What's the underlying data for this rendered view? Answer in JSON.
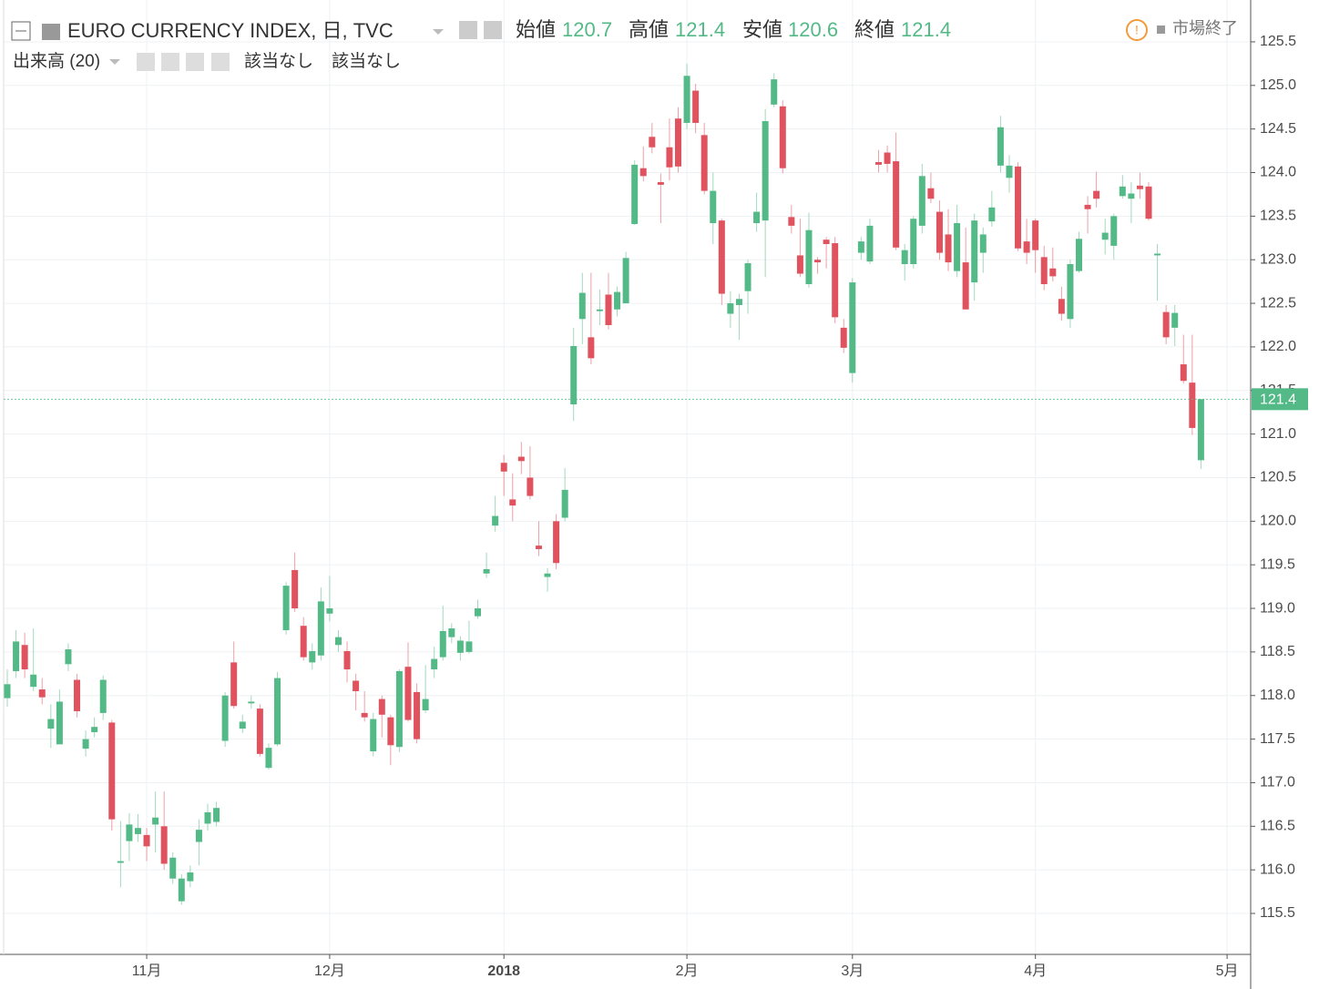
{
  "chart_data": {
    "type": "candlestick",
    "title": "EURO CURRENCY INDEX, 日, TVC",
    "ohlc_labels": [
      "始値",
      "高値",
      "安値",
      "終値"
    ],
    "volume_label": "出来高 (20)",
    "volume_values": [
      "該当なし",
      "該当なし"
    ],
    "status": "市場終了",
    "up_color": "#53b987",
    "down_color": "#e0525e",
    "grid": true,
    "categories": [
      null,
      null,
      null,
      null,
      null,
      null,
      null,
      null,
      null,
      null,
      null,
      null,
      null,
      null,
      null,
      null,
      "11月",
      null,
      null,
      null,
      null,
      null,
      null,
      null,
      null,
      null,
      null,
      null,
      null,
      null,
      null,
      null,
      null,
      null,
      null,
      null,
      null,
      "12月",
      null,
      null,
      null,
      null,
      null,
      null,
      null,
      null,
      null,
      null,
      null,
      null,
      null,
      null,
      null,
      null,
      null,
      null,
      null,
      "2018",
      null,
      null,
      null,
      null,
      null,
      null,
      null,
      null,
      null,
      null,
      null,
      null,
      null,
      null,
      null,
      null,
      null,
      null,
      null,
      null,
      "2月",
      null,
      null,
      null,
      null,
      null,
      null,
      null,
      null,
      null,
      null,
      null,
      null,
      null,
      null,
      null,
      null,
      null,
      null,
      "3月",
      null,
      null,
      null,
      null,
      null,
      null,
      null,
      null,
      null,
      null,
      null,
      null,
      null,
      null,
      null,
      null,
      null,
      null,
      null,
      null,
      "4月",
      null,
      null,
      null,
      null,
      null,
      null,
      null,
      null,
      null,
      null,
      null,
      null,
      null,
      null,
      null,
      null,
      null,
      null,
      null,
      null,
      null,
      "5月"
    ],
    "open": [
      117.97,
      118.28,
      118.58,
      118.1,
      118.07,
      117.62,
      117.44,
      118.36,
      118.18,
      117.39,
      117.58,
      117.8,
      117.69,
      116.08,
      116.33,
      116.41,
      116.4,
      116.52,
      116.5,
      115.9,
      115.64,
      115.87,
      116.32,
      116.53,
      116.55,
      117.48,
      118.38,
      117.62,
      117.91,
      117.85,
      117.17,
      117.44,
      118.75,
      119.44,
      118.8,
      118.38,
      118.46,
      118.94,
      118.58,
      118.51,
      118.17,
      117.8,
      117.36,
      117.96,
      117.75,
      117.41,
      118.33,
      118.04,
      117.83,
      118.3,
      118.44,
      118.67,
      118.49,
      118.5,
      118.91,
      119.4,
      119.95,
      120.67,
      120.25,
      120.74,
      120.5,
      119.72,
      119.36,
      120.0,
      120.04,
      121.34,
      122.32,
      122.11,
      122.41,
      122.6,
      122.43,
      122.5,
      123.41,
      124.05,
      124.41,
      123.89,
      124.29,
      124.62,
      124.57,
      124.94,
      124.43,
      123.42,
      123.45,
      122.38,
      122.48,
      122.64,
      123.42,
      123.45,
      124.78,
      124.76,
      123.49,
      123.05,
      122.72,
      123.0,
      123.23,
      123.19,
      122.22,
      121.7,
      123.08,
      122.98,
      124.12,
      124.23,
      124.13,
      122.95,
      122.95,
      123.39,
      123.82,
      123.55,
      123.29,
      122.87,
      122.97,
      122.74,
      123.08,
      123.44,
      124.08,
      123.94,
      124.07,
      123.21,
      123.45,
      123.03,
      122.9,
      122.55,
      122.32,
      122.87,
      123.63,
      123.79,
      123.23,
      123.16,
      123.73,
      123.7,
      123.85,
      123.84,
      123.05,
      122.4,
      122.22,
      121.8,
      121.59,
      120.7,
      null,
      null,
      null
    ],
    "high": [
      118.3,
      118.75,
      118.72,
      118.77,
      118.2,
      117.9,
      118.07,
      118.6,
      118.25,
      117.6,
      117.75,
      118.23,
      117.72,
      116.56,
      116.65,
      116.64,
      116.48,
      116.9,
      116.9,
      116.2,
      115.95,
      116.05,
      116.58,
      116.76,
      116.78,
      118.04,
      118.62,
      117.78,
      118.0,
      117.9,
      117.45,
      118.27,
      119.3,
      119.64,
      118.9,
      118.6,
      119.24,
      119.37,
      118.75,
      118.62,
      118.25,
      118.05,
      117.8,
      118.0,
      117.78,
      118.3,
      118.61,
      118.14,
      118.35,
      118.56,
      119.03,
      118.83,
      118.68,
      118.86,
      119.1,
      119.64,
      120.29,
      120.76,
      120.55,
      120.91,
      120.86,
      120.0,
      119.46,
      120.08,
      120.61,
      122.22,
      122.85,
      122.85,
      122.66,
      122.85,
      122.69,
      123.09,
      124.14,
      124.3,
      124.57,
      123.99,
      124.62,
      124.75,
      125.25,
      125.02,
      124.57,
      124.0,
      123.47,
      122.64,
      122.61,
      123.0,
      123.77,
      124.73,
      125.14,
      124.83,
      123.63,
      123.47,
      123.54,
      123.03,
      123.26,
      123.26,
      122.32,
      122.79,
      123.26,
      123.47,
      124.26,
      124.31,
      124.46,
      123.18,
      123.5,
      124.1,
      124.0,
      123.68,
      123.58,
      123.63,
      123.37,
      123.53,
      123.37,
      123.79,
      124.65,
      124.2,
      124.12,
      123.47,
      123.47,
      123.16,
      123.14,
      122.69,
      123.0,
      123.32,
      123.73,
      124.01,
      123.47,
      123.53,
      123.97,
      123.89,
      124.0,
      123.89,
      123.18,
      122.48,
      122.48,
      122.14,
      122.14,
      121.4,
      null,
      null,
      null
    ],
    "low": [
      117.87,
      118.2,
      118.2,
      118.05,
      117.9,
      117.4,
      117.44,
      118.28,
      117.75,
      117.3,
      117.52,
      117.72,
      116.45,
      115.8,
      116.1,
      116.32,
      116.1,
      116.2,
      116.0,
      115.84,
      115.6,
      115.8,
      116.05,
      116.45,
      116.5,
      117.41,
      117.85,
      117.57,
      117.85,
      117.3,
      117.15,
      117.42,
      118.7,
      118.96,
      118.4,
      118.3,
      118.4,
      118.85,
      118.5,
      118.15,
      117.83,
      117.7,
      117.3,
      117.52,
      117.2,
      117.35,
      117.7,
      117.45,
      117.8,
      118.2,
      118.4,
      118.6,
      118.4,
      118.48,
      118.88,
      119.35,
      119.88,
      120.29,
      120.0,
      120.54,
      120.25,
      119.6,
      119.19,
      119.45,
      120.0,
      121.15,
      122.03,
      121.8,
      122.25,
      122.2,
      122.35,
      122.5,
      123.4,
      123.9,
      124.22,
      123.42,
      123.91,
      124.0,
      124.5,
      124.45,
      123.75,
      123.18,
      122.48,
      122.22,
      122.08,
      122.38,
      123.32,
      122.8,
      124.75,
      123.99,
      123.3,
      122.8,
      122.68,
      122.84,
      122.9,
      122.27,
      121.93,
      121.59,
      123.0,
      122.95,
      124.0,
      124.0,
      123.11,
      122.76,
      122.9,
      123.3,
      123.65,
      123.0,
      122.87,
      122.8,
      122.43,
      122.53,
      122.85,
      123.38,
      124.0,
      123.77,
      123.1,
      122.95,
      122.85,
      122.65,
      122.75,
      122.3,
      122.22,
      122.85,
      123.3,
      123.6,
      123.06,
      123.0,
      123.7,
      123.42,
      123.7,
      123.45,
      122.53,
      122.03,
      122.01,
      121.58,
      120.99,
      120.6,
      null,
      null,
      null
    ],
    "close": [
      118.13,
      118.62,
      118.3,
      118.24,
      117.98,
      117.73,
      117.93,
      118.53,
      117.82,
      117.5,
      117.64,
      118.18,
      116.58,
      116.1,
      116.52,
      116.48,
      116.27,
      116.6,
      116.07,
      116.14,
      115.9,
      115.97,
      116.46,
      116.66,
      116.71,
      118.0,
      117.88,
      117.7,
      117.93,
      117.33,
      117.4,
      118.2,
      119.26,
      119.0,
      118.44,
      118.51,
      119.08,
      119.0,
      118.67,
      118.3,
      118.05,
      117.75,
      117.73,
      117.78,
      117.43,
      118.28,
      117.72,
      117.5,
      117.96,
      118.42,
      118.74,
      118.77,
      118.63,
      118.62,
      119.0,
      119.45,
      120.06,
      120.57,
      120.18,
      120.69,
      120.29,
      119.68,
      119.4,
      119.52,
      120.36,
      122.01,
      122.62,
      121.87,
      122.43,
      122.25,
      122.63,
      123.02,
      124.09,
      123.96,
      124.29,
      123.86,
      124.06,
      124.07,
      125.11,
      124.57,
      123.79,
      123.79,
      122.61,
      122.5,
      122.55,
      122.96,
      123.55,
      124.59,
      125.07,
      124.05,
      123.39,
      122.84,
      123.34,
      122.97,
      123.18,
      122.34,
      121.99,
      122.74,
      123.21,
      123.39,
      124.09,
      124.1,
      123.14,
      123.11,
      123.47,
      123.96,
      123.7,
      123.08,
      122.97,
      123.42,
      122.43,
      123.45,
      123.29,
      123.6,
      124.52,
      124.08,
      123.13,
      123.08,
      123.11,
      122.72,
      122.81,
      122.38,
      122.95,
      123.24,
      123.58,
      123.7,
      123.31,
      123.5,
      123.84,
      123.76,
      123.81,
      123.47,
      123.07,
      122.11,
      122.39,
      121.61,
      121.07,
      121.4,
      null,
      null,
      null
    ],
    "ylim": [
      115.03,
      125.98
    ],
    "yticks": [
      115.5,
      {
        "value": 116,
        "label": "116.0"
      },
      116.5,
      {
        "value": 117,
        "label": "117.0"
      },
      117.5,
      {
        "value": 118,
        "label": "118.0"
      },
      118.5,
      {
        "value": 119,
        "label": "119.0"
      },
      119.5,
      {
        "value": 120,
        "label": "120.0"
      },
      120.5,
      {
        "value": 121,
        "label": "121.0"
      },
      121.5,
      {
        "value": 122,
        "label": "122.0"
      },
      122.5,
      {
        "value": 123,
        "label": "123.0"
      },
      123.5,
      {
        "value": 124,
        "label": "124.0"
      },
      124.5,
      {
        "value": 125,
        "label": "125.0"
      },
      125.5
    ]
  }
}
